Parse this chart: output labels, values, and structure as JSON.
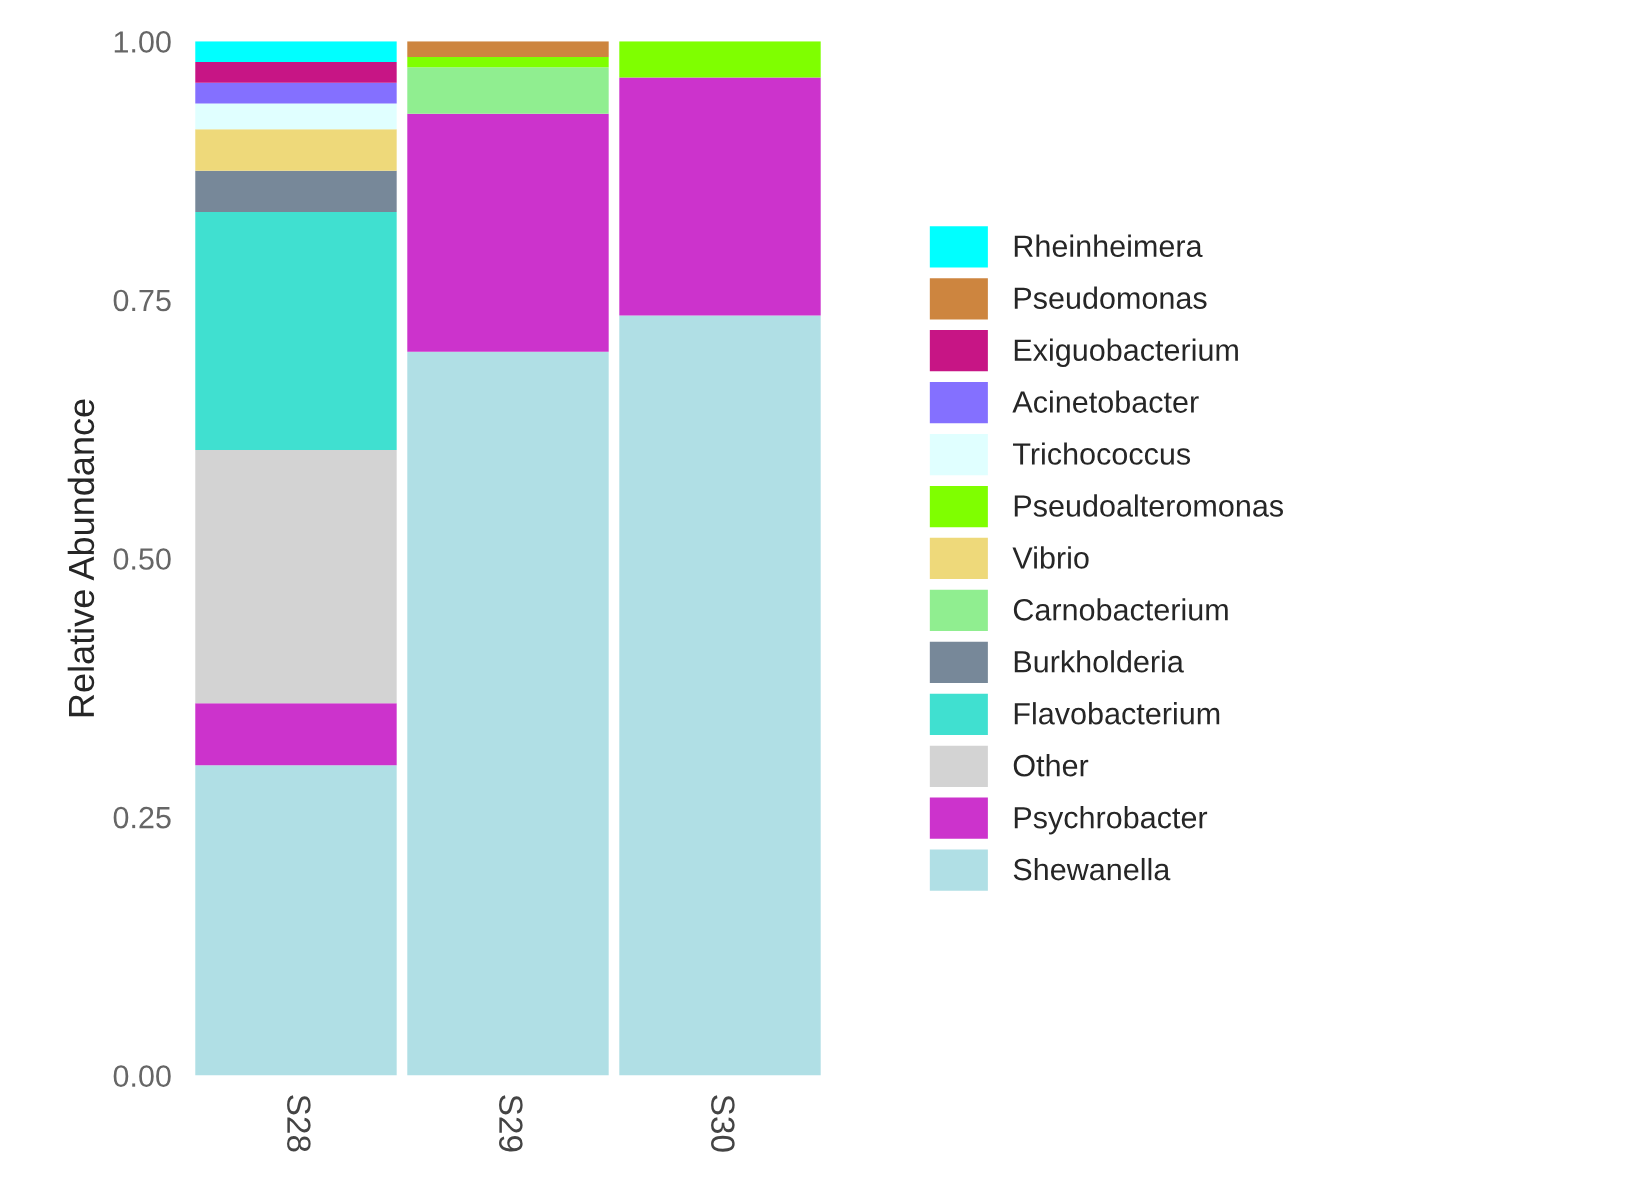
{
  "chart_data": {
    "type": "bar",
    "stacked": true,
    "ylabel": "Relative Abundance",
    "categories": [
      "S28",
      "S29",
      "S30"
    ],
    "ylim": [
      0,
      1
    ],
    "yticks": [
      {
        "value": 0,
        "label": "0.00"
      },
      {
        "value": 0.25,
        "label": "0.25"
      },
      {
        "value": 0.5,
        "label": "0.50"
      },
      {
        "value": 0.75,
        "label": "0.75"
      },
      {
        "value": 1,
        "label": "1.00"
      }
    ],
    "grid": false,
    "legend": "right",
    "series": [
      {
        "name": "Shewanella",
        "color": "#b0dfe5",
        "values": [
          0.3,
          0.7,
          0.735
        ]
      },
      {
        "name": "Psychrobacter",
        "color": "#cc33cc",
        "values": [
          0.06,
          0.23,
          0.23
        ]
      },
      {
        "name": "Other",
        "color": "#d3d3d3",
        "values": [
          0.245,
          null,
          null
        ]
      },
      {
        "name": "Flavobacterium",
        "color": "#40e0d0",
        "values": [
          0.23,
          null,
          null
        ]
      },
      {
        "name": "Burkholderia",
        "color": "#778899",
        "values": [
          0.04,
          null,
          null
        ]
      },
      {
        "name": "Carnobacterium",
        "color": "#90ee90",
        "values": [
          null,
          0.045,
          null
        ]
      },
      {
        "name": "Vibrio",
        "color": "#eed97a",
        "values": [
          0.04,
          null,
          null
        ]
      },
      {
        "name": "Pseudoalteromonas",
        "color": "#7fff00",
        "values": [
          null,
          0.01,
          0.035
        ]
      },
      {
        "name": "Trichococcus",
        "color": "#e0ffff",
        "values": [
          0.025,
          null,
          null
        ]
      },
      {
        "name": "Acinetobacter",
        "color": "#8470ff",
        "values": [
          0.02,
          null,
          null
        ]
      },
      {
        "name": "Exiguobacterium",
        "color": "#c71585",
        "values": [
          0.02,
          null,
          null
        ]
      },
      {
        "name": "Pseudomonas",
        "color": "#cd853f",
        "values": [
          null,
          0.015,
          null
        ]
      },
      {
        "name": "Rheinheimera",
        "color": "#00ffff",
        "values": [
          0.02,
          null,
          null
        ]
      }
    ]
  }
}
